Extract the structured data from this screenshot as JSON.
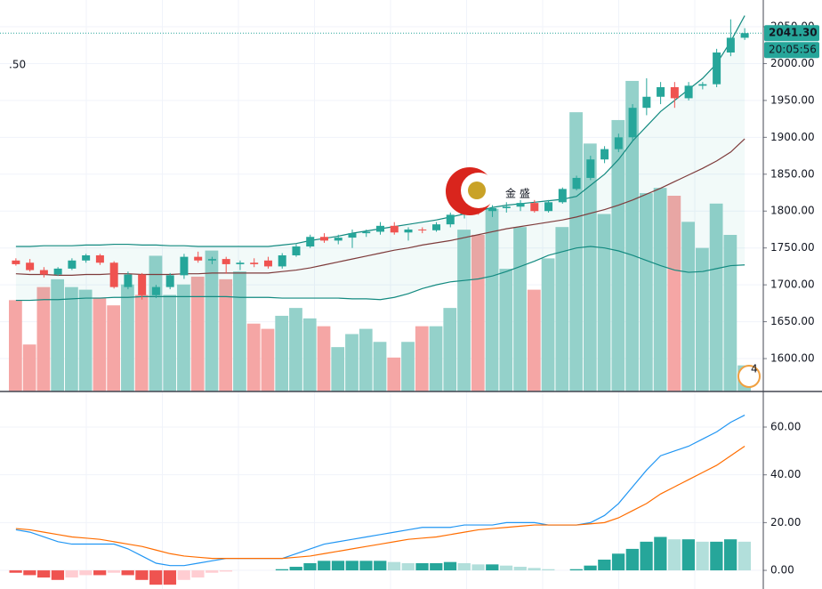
{
  "chart_data": {
    "type": "candlestick",
    "ohlc": [
      [
        1733,
        1736,
        1726,
        1728
      ],
      [
        1730,
        1735,
        1718,
        1720
      ],
      [
        1720,
        1724,
        1710,
        1714
      ],
      [
        1714,
        1724,
        1712,
        1722
      ],
      [
        1722,
        1736,
        1720,
        1733
      ],
      [
        1733,
        1742,
        1730,
        1740
      ],
      [
        1740,
        1742,
        1727,
        1730
      ],
      [
        1730,
        1732,
        1695,
        1697
      ],
      [
        1697,
        1718,
        1694,
        1714
      ],
      [
        1714,
        1716,
        1680,
        1686
      ],
      [
        1686,
        1700,
        1682,
        1697
      ],
      [
        1697,
        1716,
        1694,
        1713
      ],
      [
        1713,
        1742,
        1708,
        1738
      ],
      [
        1738,
        1745,
        1730,
        1733
      ],
      [
        1733,
        1738,
        1728,
        1735
      ],
      [
        1735,
        1738,
        1715,
        1728
      ],
      [
        1728,
        1733,
        1720,
        1730
      ],
      [
        1730,
        1736,
        1724,
        1728
      ],
      [
        1733,
        1738,
        1722,
        1725
      ],
      [
        1725,
        1743,
        1722,
        1740
      ],
      [
        1740,
        1755,
        1738,
        1752
      ],
      [
        1752,
        1768,
        1750,
        1765
      ],
      [
        1765,
        1770,
        1757,
        1760
      ],
      [
        1760,
        1768,
        1755,
        1764
      ],
      [
        1764,
        1775,
        1750,
        1770
      ],
      [
        1770,
        1775,
        1765,
        1772
      ],
      [
        1772,
        1785,
        1768,
        1780
      ],
      [
        1780,
        1785,
        1768,
        1771
      ],
      [
        1771,
        1778,
        1760,
        1775
      ],
      [
        1775,
        1778,
        1770,
        1774
      ],
      [
        1774,
        1785,
        1772,
        1782
      ],
      [
        1782,
        1798,
        1778,
        1795
      ],
      [
        1795,
        1808,
        1790,
        1805
      ],
      [
        1805,
        1815,
        1795,
        1800
      ],
      [
        1800,
        1808,
        1792,
        1804
      ],
      [
        1804,
        1812,
        1798,
        1806
      ],
      [
        1806,
        1815,
        1800,
        1811
      ],
      [
        1811,
        1815,
        1798,
        1800
      ],
      [
        1800,
        1815,
        1798,
        1812
      ],
      [
        1812,
        1832,
        1810,
        1830
      ],
      [
        1830,
        1848,
        1828,
        1845
      ],
      [
        1845,
        1875,
        1842,
        1870
      ],
      [
        1870,
        1888,
        1865,
        1884
      ],
      [
        1884,
        1905,
        1880,
        1900
      ],
      [
        1900,
        1945,
        1895,
        1940
      ],
      [
        1940,
        1980,
        1930,
        1955
      ],
      [
        1955,
        1975,
        1945,
        1968
      ],
      [
        1968,
        1975,
        1940,
        1953
      ],
      [
        1953,
        1975,
        1950,
        1970
      ],
      [
        1970,
        1975,
        1965,
        1972
      ],
      [
        1972,
        2020,
        1968,
        2015
      ],
      [
        2015,
        2060,
        2010,
        2035
      ],
      [
        2035,
        2048,
        2032,
        2041.3
      ]
    ],
    "colors": {
      "up": "#26a69a",
      "down": "#ef5350",
      "volume_up": "#94d1ca",
      "volume_down": "#f5a6a5"
    },
    "ylim": [
      1555.4,
      2086.2
    ],
    "yticks": [
      {
        "value": 1600,
        "label": "1600.00"
      },
      {
        "value": 1650,
        "label": "1650.00"
      },
      {
        "value": 1700,
        "label": "1700.00"
      },
      {
        "value": 1750,
        "label": "1750.00"
      },
      {
        "value": 1800,
        "label": "1800.00"
      },
      {
        "value": 1850,
        "label": "1850.00"
      },
      {
        "value": 1900,
        "label": "1900.00"
      },
      {
        "value": 1950,
        "label": "1950.00"
      },
      {
        "value": 2000,
        "label": "2000.00"
      },
      {
        "value": 2050,
        "label": "2050.00"
      }
    ],
    "grid": true,
    "last_price": {
      "value": 2041.3,
      "label": "2041.30",
      "color": "#26a69a"
    },
    "countdown": "20:05:56",
    "indicator_label": ".50",
    "watermark": "金 盛",
    "badge": "4",
    "bands": {
      "line_color": "#138a80",
      "middle_color": "#7e3b3b",
      "fill": "rgba(38,166,154,0.06)",
      "upper": [
        1752,
        1752,
        1753,
        1753,
        1753,
        1754,
        1754,
        1755,
        1755,
        1754,
        1754,
        1753,
        1753,
        1752,
        1752,
        1752,
        1752,
        1752,
        1752,
        1754,
        1756,
        1760,
        1763,
        1766,
        1770,
        1773,
        1776,
        1779,
        1782,
        1785,
        1788,
        1792,
        1796,
        1800,
        1805,
        1808,
        1810,
        1812,
        1814,
        1816,
        1820,
        1835,
        1850,
        1870,
        1895,
        1915,
        1935,
        1950,
        1965,
        1980,
        2000,
        2030,
        2065
      ],
      "middle": [
        1715,
        1714,
        1714,
        1713,
        1713,
        1714,
        1714,
        1715,
        1715,
        1714,
        1714,
        1714,
        1715,
        1715,
        1716,
        1716,
        1716,
        1716,
        1716,
        1718,
        1720,
        1723,
        1727,
        1731,
        1735,
        1739,
        1743,
        1747,
        1750,
        1754,
        1757,
        1760,
        1764,
        1768,
        1772,
        1776,
        1779,
        1782,
        1785,
        1788,
        1792,
        1797,
        1802,
        1808,
        1815,
        1823,
        1831,
        1840,
        1849,
        1858,
        1868,
        1880,
        1898
      ],
      "lower": [
        1679,
        1679,
        1680,
        1680,
        1681,
        1682,
        1682,
        1683,
        1683,
        1684,
        1684,
        1684,
        1684,
        1684,
        1684,
        1684,
        1683,
        1683,
        1683,
        1682,
        1682,
        1682,
        1682,
        1682,
        1681,
        1681,
        1680,
        1683,
        1688,
        1695,
        1700,
        1704,
        1706,
        1708,
        1712,
        1718,
        1725,
        1732,
        1740,
        1745,
        1750,
        1752,
        1750,
        1746,
        1740,
        1733,
        1726,
        1720,
        1717,
        1718,
        1722,
        1726,
        1727
      ]
    },
    "volume": {
      "ylim": [
        0,
        150
      ],
      "values": [
        35,
        18,
        40,
        43,
        40,
        39,
        36,
        33,
        41,
        37,
        52,
        37,
        41,
        44,
        54,
        43,
        46,
        26,
        24,
        29,
        32,
        28,
        25,
        17,
        22,
        24,
        19,
        13,
        19,
        25,
        25,
        32,
        62,
        60,
        70,
        47,
        63,
        39,
        51,
        63,
        107,
        95,
        68,
        104,
        119,
        76,
        78,
        75,
        65,
        55,
        72,
        60,
        10
      ]
    },
    "macd": {
      "ylim": [
        -7.8,
        74.9
      ],
      "yticks": [
        {
          "value": 0,
          "label": "0.00"
        },
        {
          "value": 20,
          "label": "20.00"
        },
        {
          "value": 40,
          "label": "40.00"
        },
        {
          "value": 60,
          "label": "60.00"
        }
      ],
      "histogram": {
        "colors": {
          "up_rising": "#26a69a",
          "up_falling": "#b2dfdb",
          "down_falling": "#ef5350",
          "down_rising": "#ffcdd2"
        },
        "values": [
          -1,
          -2,
          -3,
          -4,
          -3,
          -2,
          -2,
          -1,
          -2,
          -4,
          -6,
          -6,
          -4,
          -3,
          -1,
          -0.5,
          0,
          0,
          0,
          0.5,
          1.5,
          3,
          4,
          4,
          4,
          4,
          4,
          3.5,
          3,
          3,
          3,
          3.5,
          3,
          2.5,
          2.5,
          2,
          1.5,
          1,
          0.5,
          0,
          0.5,
          2,
          4.5,
          7,
          9,
          12,
          14,
          13,
          13,
          12,
          12,
          13,
          12
        ]
      },
      "series": [
        {
          "color": "#2196f3",
          "values": [
            17,
            16,
            14,
            12,
            11,
            11,
            11,
            11,
            9,
            6,
            3,
            2,
            2,
            3,
            4,
            5,
            5,
            5,
            5,
            5,
            7,
            9,
            11,
            12,
            13,
            14,
            15,
            16,
            17,
            18,
            18,
            18,
            19,
            19,
            19,
            20,
            20,
            20,
            19,
            19,
            19,
            20,
            23,
            28,
            35,
            42,
            48,
            50,
            52,
            55,
            58,
            62,
            65
          ]
        },
        {
          "color": "#ff6d00",
          "values": [
            17.5,
            17,
            16,
            15,
            14,
            13.5,
            13,
            12,
            11,
            10,
            8.5,
            7,
            6,
            5.5,
            5,
            5,
            5,
            5,
            5,
            5,
            5.5,
            6,
            7,
            8,
            9,
            10,
            11,
            12,
            13,
            13.5,
            14,
            15,
            16,
            17,
            17.5,
            18,
            18.5,
            19,
            19,
            19,
            19,
            19.5,
            20,
            22,
            25,
            28,
            32,
            35,
            38,
            41,
            44,
            48,
            52
          ]
        }
      ]
    }
  }
}
